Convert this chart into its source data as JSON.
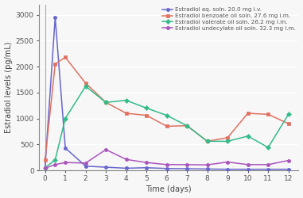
{
  "series": [
    {
      "label": "Estradiol aq. soln. 20.0 mg i.v.",
      "color": "#6666cc",
      "marker": "o",
      "x": [
        0,
        0.5,
        1,
        2,
        3,
        4,
        5,
        6,
        7,
        8,
        9,
        10,
        11,
        12
      ],
      "y": [
        50,
        2950,
        430,
        80,
        60,
        40,
        50,
        35,
        30,
        25,
        20,
        20,
        20,
        20
      ]
    },
    {
      "label": "Estradiol benzoate oil soln. 27.6 mg i.m.",
      "color": "#e07060",
      "marker": "s",
      "x": [
        0,
        0.5,
        1,
        2,
        3,
        4,
        5,
        6,
        7,
        8,
        9,
        10,
        11,
        12
      ],
      "y": [
        200,
        2050,
        2180,
        1680,
        1310,
        1100,
        1060,
        850,
        860,
        560,
        630,
        1100,
        1080,
        900
      ]
    },
    {
      "label": "Estradiol valerate oil soln. 26.2 mg i.m.",
      "color": "#33bb88",
      "marker": "D",
      "x": [
        0,
        0.5,
        1,
        2,
        3,
        4,
        5,
        6,
        7,
        8,
        9,
        10,
        11,
        12
      ],
      "y": [
        50,
        200,
        1000,
        1620,
        1310,
        1350,
        1200,
        1060,
        860,
        560,
        560,
        660,
        440,
        1080
      ]
    },
    {
      "label": "Estradiol undecylate oil soln. 32.3 mg i.m.",
      "color": "#aa55bb",
      "marker": "o",
      "x": [
        0,
        0.5,
        1,
        2,
        3,
        4,
        5,
        6,
        7,
        8,
        9,
        10,
        11,
        12
      ],
      "y": [
        40,
        110,
        150,
        140,
        400,
        210,
        150,
        110,
        110,
        105,
        160,
        110,
        110,
        190
      ]
    }
  ],
  "xlabel": "Time (days)",
  "ylabel": "Estradiol levels (pg/mL)",
  "xlim": [
    -0.3,
    12.5
  ],
  "ylim": [
    0,
    3200
  ],
  "yticks": [
    0,
    500,
    1000,
    1500,
    2000,
    2500,
    3000
  ],
  "xticks": [
    0,
    1,
    2,
    3,
    4,
    5,
    6,
    7,
    8,
    9,
    10,
    11,
    12
  ],
  "legend_loc": "upper right",
  "legend_fontsize": 5.2,
  "axis_label_fontsize": 7,
  "tick_fontsize": 6.5,
  "linewidth": 1.1,
  "markersize": 3.0,
  "plot_bg_color": "#f7f7f7",
  "fig_bg_color": "#f7f7f7",
  "grid_color": "#ffffff",
  "grid_linewidth": 1.0,
  "spine_bottom_color": "#888888",
  "spine_left_color": "#888888"
}
